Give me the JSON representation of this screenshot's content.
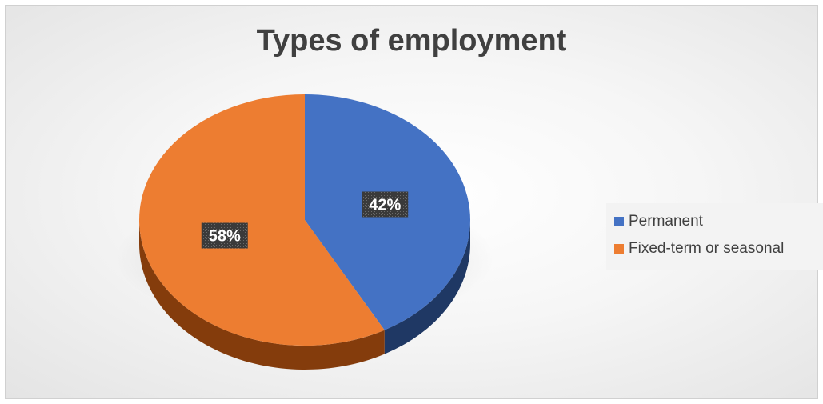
{
  "chart_data": {
    "type": "pie",
    "title": "Types of employment",
    "slices": [
      {
        "name": "Permanent",
        "value": 42,
        "label": "42%",
        "color": "#4472C4",
        "side_color": "#1F3864"
      },
      {
        "name": "Fixed-term or seasonal",
        "value": 58,
        "label": "58%",
        "color": "#ED7D31",
        "side_color": "#843C0C"
      }
    ],
    "legend_position": "right",
    "style": "3d"
  }
}
